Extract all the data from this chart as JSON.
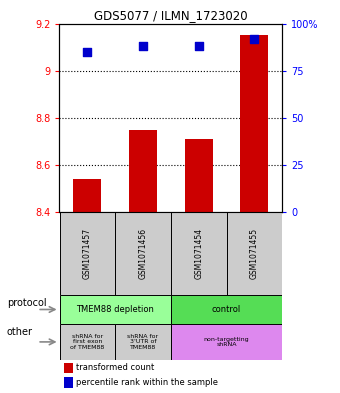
{
  "title": "GDS5077 / ILMN_1723020",
  "samples": [
    "GSM1071457",
    "GSM1071456",
    "GSM1071454",
    "GSM1071455"
  ],
  "transformed_counts": [
    8.54,
    8.75,
    8.71,
    9.15
  ],
  "percentile_ranks": [
    85,
    88,
    88,
    92
  ],
  "ylim": [
    8.4,
    9.2
  ],
  "yticks_left": [
    8.4,
    8.6,
    8.8,
    9.0,
    9.2
  ],
  "ytick_labels_left": [
    "8.4",
    "8.6",
    "8.8",
    "9",
    "9.2"
  ],
  "yticks_right": [
    0,
    25,
    50,
    75,
    100
  ],
  "ytick_labels_right": [
    "0",
    "25",
    "50",
    "75",
    "100%"
  ],
  "grid_lines": [
    8.6,
    8.8,
    9.0
  ],
  "bar_color": "#cc0000",
  "dot_color": "#0000cc",
  "dot_size": 30,
  "bar_width": 0.5,
  "protocol_labels": [
    "TMEM88 depletion",
    "control"
  ],
  "protocol_spans": [
    2,
    2
  ],
  "protocol_colors": [
    "#99ff99",
    "#55dd55"
  ],
  "other_labels": [
    "shRNA for\nfirst exon\nof TMEM88",
    "shRNA for\n3'UTR of\nTMEM88",
    "non-targetting\nshRNA"
  ],
  "other_spans": [
    1,
    1,
    2
  ],
  "other_colors": [
    "#cccccc",
    "#cccccc",
    "#dd88ee"
  ],
  "sample_box_color": "#cccccc",
  "legend_bar_label": "transformed count",
  "legend_dot_label": "percentile rank within the sample",
  "protocol_label": "protocol",
  "other_label": "other"
}
